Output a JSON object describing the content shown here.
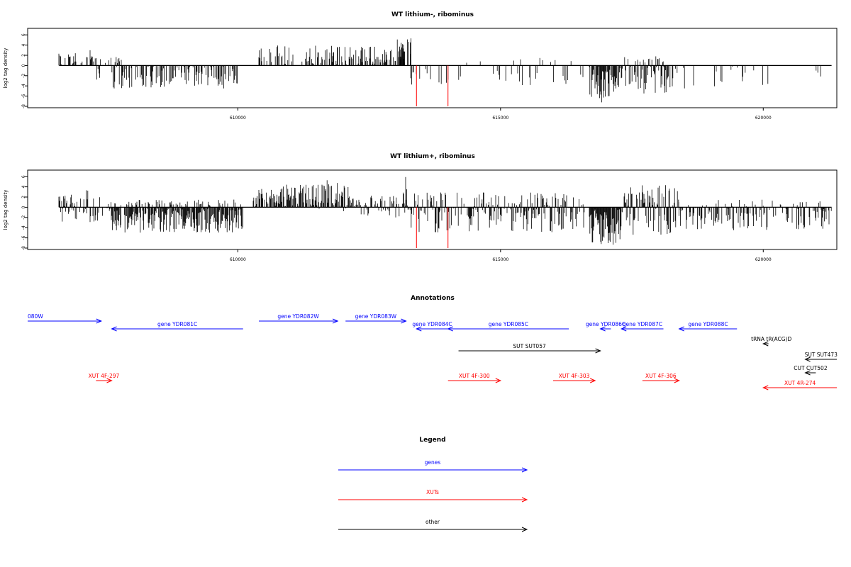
{
  "colors": {
    "genes": "#0000ff",
    "xuts": "#ff0000",
    "other": "#000000",
    "bars": "#000000",
    "marker": "#ff0000"
  },
  "panels_common": {
    "ylabel": "log2 tag density",
    "yticks": [
      6,
      4,
      2,
      0,
      -2,
      -4,
      -6,
      -8
    ],
    "xticks": [
      610000,
      615000,
      620000
    ],
    "xlim": [
      606000,
      621400
    ],
    "ylim": [
      -8,
      7
    ],
    "bars_start": 606600,
    "bars_end": 621300,
    "red_markers": [
      613400,
      614000
    ]
  },
  "chart_data": [
    {
      "type": "bar",
      "title": "WT lithium-, ribominus",
      "ylabel": "log2 tag density",
      "xlim": [
        606000,
        621400
      ],
      "ylim": [
        -8,
        7
      ],
      "red_markers": [
        {
          "x": 613400,
          "y": -8
        },
        {
          "x": 614000,
          "y": -8
        }
      ],
      "regions": [
        {
          "x0": 606600,
          "x1": 607300,
          "lo": 0,
          "hi": 3,
          "density": 0.35
        },
        {
          "x0": 607200,
          "x1": 607800,
          "lo": 0,
          "hi": 1.8,
          "density": 0.2
        },
        {
          "x0": 607300,
          "x1": 607400,
          "lo": -3.5,
          "hi": 0,
          "density": 0.5
        },
        {
          "x0": 607600,
          "x1": 610000,
          "lo": -4.5,
          "hi": 0,
          "density": 0.55
        },
        {
          "x0": 610400,
          "x1": 613300,
          "lo": 0,
          "hi": 4,
          "density": 0.45
        },
        {
          "x0": 613000,
          "x1": 613300,
          "lo": 0,
          "hi": 5.5,
          "density": 0.6
        },
        {
          "x0": 613300,
          "x1": 614100,
          "lo": -4,
          "hi": 0,
          "density": 0.25
        },
        {
          "x0": 614200,
          "x1": 616600,
          "lo": -4,
          "hi": 1.5,
          "density": 0.15
        },
        {
          "x0": 616700,
          "x1": 617300,
          "lo": -7.5,
          "hi": 0,
          "density": 0.9
        },
        {
          "x0": 617300,
          "x1": 618300,
          "lo": -5.5,
          "hi": 2,
          "density": 0.75
        },
        {
          "x0": 618300,
          "x1": 620100,
          "lo": -5,
          "hi": 0,
          "density": 0.15
        },
        {
          "x0": 621000,
          "x1": 621100,
          "lo": -2.8,
          "hi": 0,
          "density": 0.3
        }
      ]
    },
    {
      "type": "bar",
      "title": "WT lithium+, ribominus",
      "ylabel": "log2 tag density",
      "xlim": [
        606000,
        621400
      ],
      "ylim": [
        -8,
        7
      ],
      "red_markers": [
        {
          "x": 613400,
          "y": -8
        },
        {
          "x": 614000,
          "y": -8
        }
      ],
      "regions": [
        {
          "x0": 606600,
          "x1": 607600,
          "lo": -3,
          "hi": 3.5,
          "density": 0.7
        },
        {
          "x0": 607600,
          "x1": 610100,
          "lo": -5,
          "hi": 0,
          "density": 0.9
        },
        {
          "x0": 607600,
          "x1": 610100,
          "lo": 0,
          "hi": 1.5,
          "density": 0.3
        },
        {
          "x0": 610300,
          "x1": 611500,
          "lo": 0,
          "hi": 4.5,
          "density": 0.8
        },
        {
          "x0": 611500,
          "x1": 612200,
          "lo": -1,
          "hi": 5.5,
          "density": 0.8
        },
        {
          "x0": 612200,
          "x1": 613200,
          "lo": -2,
          "hi": 3,
          "density": 0.6
        },
        {
          "x0": 613200,
          "x1": 613300,
          "lo": -1,
          "hi": 6.5,
          "density": 0.5
        },
        {
          "x0": 613300,
          "x1": 616600,
          "lo": -5,
          "hi": 3,
          "density": 0.65
        },
        {
          "x0": 616700,
          "x1": 617300,
          "lo": -7.5,
          "hi": 0,
          "density": 0.95
        },
        {
          "x0": 617300,
          "x1": 618400,
          "lo": -5.5,
          "hi": 4.5,
          "density": 0.85
        },
        {
          "x0": 618400,
          "x1": 621300,
          "lo": -4.5,
          "hi": 1.5,
          "density": 0.5
        }
      ]
    }
  ],
  "panels": [
    {
      "title": "WT lithium-, ribominus",
      "ylabel": "log2 tag density",
      "tick_labels": [
        "610000",
        "615000",
        "620000"
      ],
      "ytick_labels": [
        "6",
        "4",
        "2",
        "0",
        "-2",
        "-4",
        "-6",
        "-8"
      ]
    },
    {
      "title": "WT lithium+, ribominus",
      "ylabel": "log2 tag density",
      "tick_labels": [
        "610000",
        "615000",
        "620000"
      ],
      "ytick_labels": [
        "6",
        "4",
        "2",
        "0",
        "-2",
        "-4",
        "-6",
        "-8"
      ]
    }
  ],
  "annotations": {
    "title": "Annotations",
    "xlim": [
      606000,
      621400
    ],
    "features": [
      {
        "label": "080W",
        "type": "gene",
        "start": 606000,
        "end": 607400,
        "dir": "+",
        "row": 0
      },
      {
        "label": "gene YDR081C",
        "type": "gene",
        "start": 607600,
        "end": 610100,
        "dir": "-",
        "row": 1
      },
      {
        "label": "gene YDR082W",
        "type": "gene",
        "start": 610400,
        "end": 611900,
        "dir": "+",
        "row": 0
      },
      {
        "label": "gene YDR083W",
        "type": "gene",
        "start": 612050,
        "end": 613200,
        "dir": "+",
        "row": 0
      },
      {
        "label": "gene YDR084C",
        "type": "gene",
        "start": 613400,
        "end": 614000,
        "dir": "-",
        "row": 1
      },
      {
        "label": "gene YDR085C",
        "type": "gene",
        "start": 614000,
        "end": 616300,
        "dir": "-",
        "row": 1
      },
      {
        "label": "gene YDR086C",
        "type": "gene",
        "start": 616900,
        "end": 617100,
        "dir": "-",
        "row": 1
      },
      {
        "label": "gene YDR087C",
        "type": "gene",
        "start": 617300,
        "end": 618100,
        "dir": "-",
        "row": 1
      },
      {
        "label": "gene YDR088C",
        "type": "gene",
        "start": 618400,
        "end": 619500,
        "dir": "-",
        "row": 1
      },
      {
        "label": "tRNA tR(ACG)D",
        "type": "other",
        "start": 620000,
        "end": 620100,
        "dir": "-",
        "row": 2
      },
      {
        "label": "SUT SUT057",
        "type": "other",
        "start": 614200,
        "end": 616900,
        "dir": "+",
        "row": 3
      },
      {
        "label": "SUT SUT473",
        "type": "other",
        "start": 620800,
        "end": 621400,
        "dir": "-",
        "row": 4
      },
      {
        "label": "CUT CUT502",
        "type": "other",
        "start": 620800,
        "end": 621000,
        "dir": "-",
        "row": 5
      },
      {
        "label": "XUT 4F-297",
        "type": "xut",
        "start": 607300,
        "end": 607600,
        "dir": "+",
        "row": 6
      },
      {
        "label": "XUT 4F-300",
        "type": "xut",
        "start": 614000,
        "end": 615000,
        "dir": "+",
        "row": 6
      },
      {
        "label": "XUT 4F-303",
        "type": "xut",
        "start": 616000,
        "end": 616800,
        "dir": "+",
        "row": 6
      },
      {
        "label": "XUT 4F-306",
        "type": "xut",
        "start": 617700,
        "end": 618400,
        "dir": "+",
        "row": 6
      },
      {
        "label": "XUT 4R-274",
        "type": "xut",
        "start": 620000,
        "end": 621400,
        "dir": "-",
        "row": 7
      }
    ]
  },
  "legend": {
    "title": "Legend",
    "items": [
      {
        "label": "genes",
        "type": "gene"
      },
      {
        "label": "XUTs",
        "type": "xut"
      },
      {
        "label": "other",
        "type": "other"
      }
    ]
  }
}
